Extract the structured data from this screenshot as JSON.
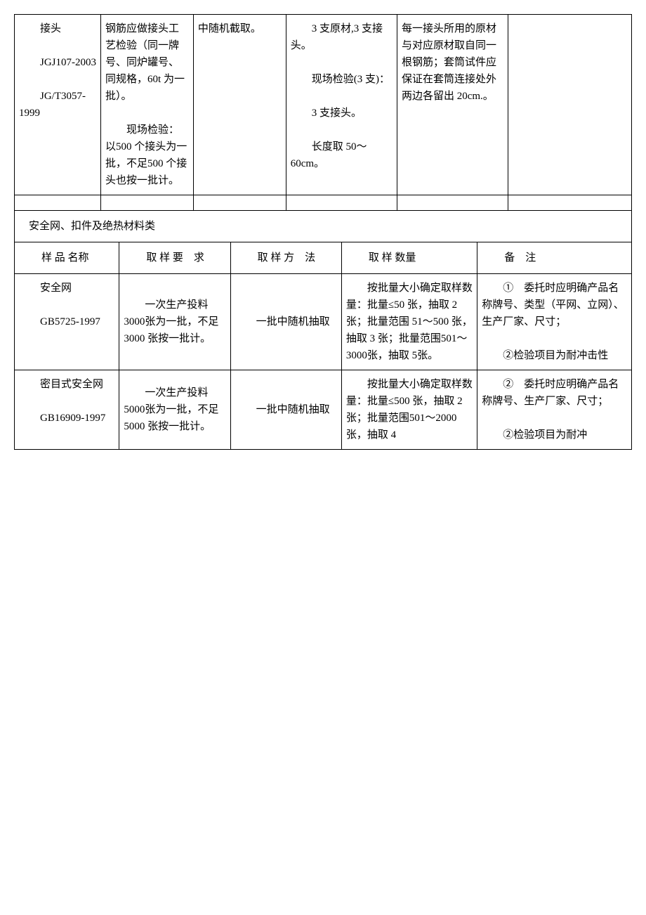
{
  "table1": {
    "row": {
      "col1": "　　接头\n\n　　JGJ107-2003\n\n　　JG/T3057-1999",
      "col2": "钢筋应做接头工艺检验（同一牌号、同炉罐号、同规格，60t 为一批）。\n\n　　现场检验：以500 个接头为一批，不足500 个接头也按一批计。",
      "col3": "中随机截取。",
      "col4": "　　3 支原材,3 支接头。\n\n　　现场检验(3 支)：\n\n　　3 支接头。\n\n　　长度取 50～60cm。",
      "col5": "每一接头所用的原材与对应原材取自同一根钢筋；套筒试件应保证在套筒连接处外两边各留出 20cm.。",
      "col6": ""
    }
  },
  "section2": {
    "title": "安全网、扣件及绝热材料类",
    "headers": {
      "name": "　　样 品 名称",
      "req": "　　取 样 要　求",
      "method": "　　取 样 方　法",
      "qty": "　　取 样 数量",
      "note": "　　备　注"
    },
    "rows": [
      {
        "name": "　　安全网\n\n　　GB5725-1997",
        "req": "　　一次生产投料 3000张为一批，不足 3000 张按一批计。",
        "method": "　　一批中随机抽取",
        "qty": "　　按批量大小确定取样数量：批量≤50 张，抽取 2 张；批量范围 51～500 张，抽取 3 张；批量范围501～3000张，抽取 5张。",
        "note": "　　①　委托时应明确产品名称牌号、类型（平网、立网）、生产厂家、尺寸；\n\n　　②检验项目为耐冲击性"
      },
      {
        "name": "　　密目式安全网\n\n　　GB16909-1997",
        "req": "　　一次生产投料 5000张为一批，不足 5000 张按一批计。",
        "method": "　　一批中随机抽取",
        "qty": "　　按批量大小确定取样数量：批量≤500 张，抽取 2 张；批量范围501～2000张，抽取 4",
        "note": "　　②　委托时应明确产品名称牌号、生产厂家、尺寸；\n\n　　②检验项目为耐冲"
      }
    ]
  }
}
